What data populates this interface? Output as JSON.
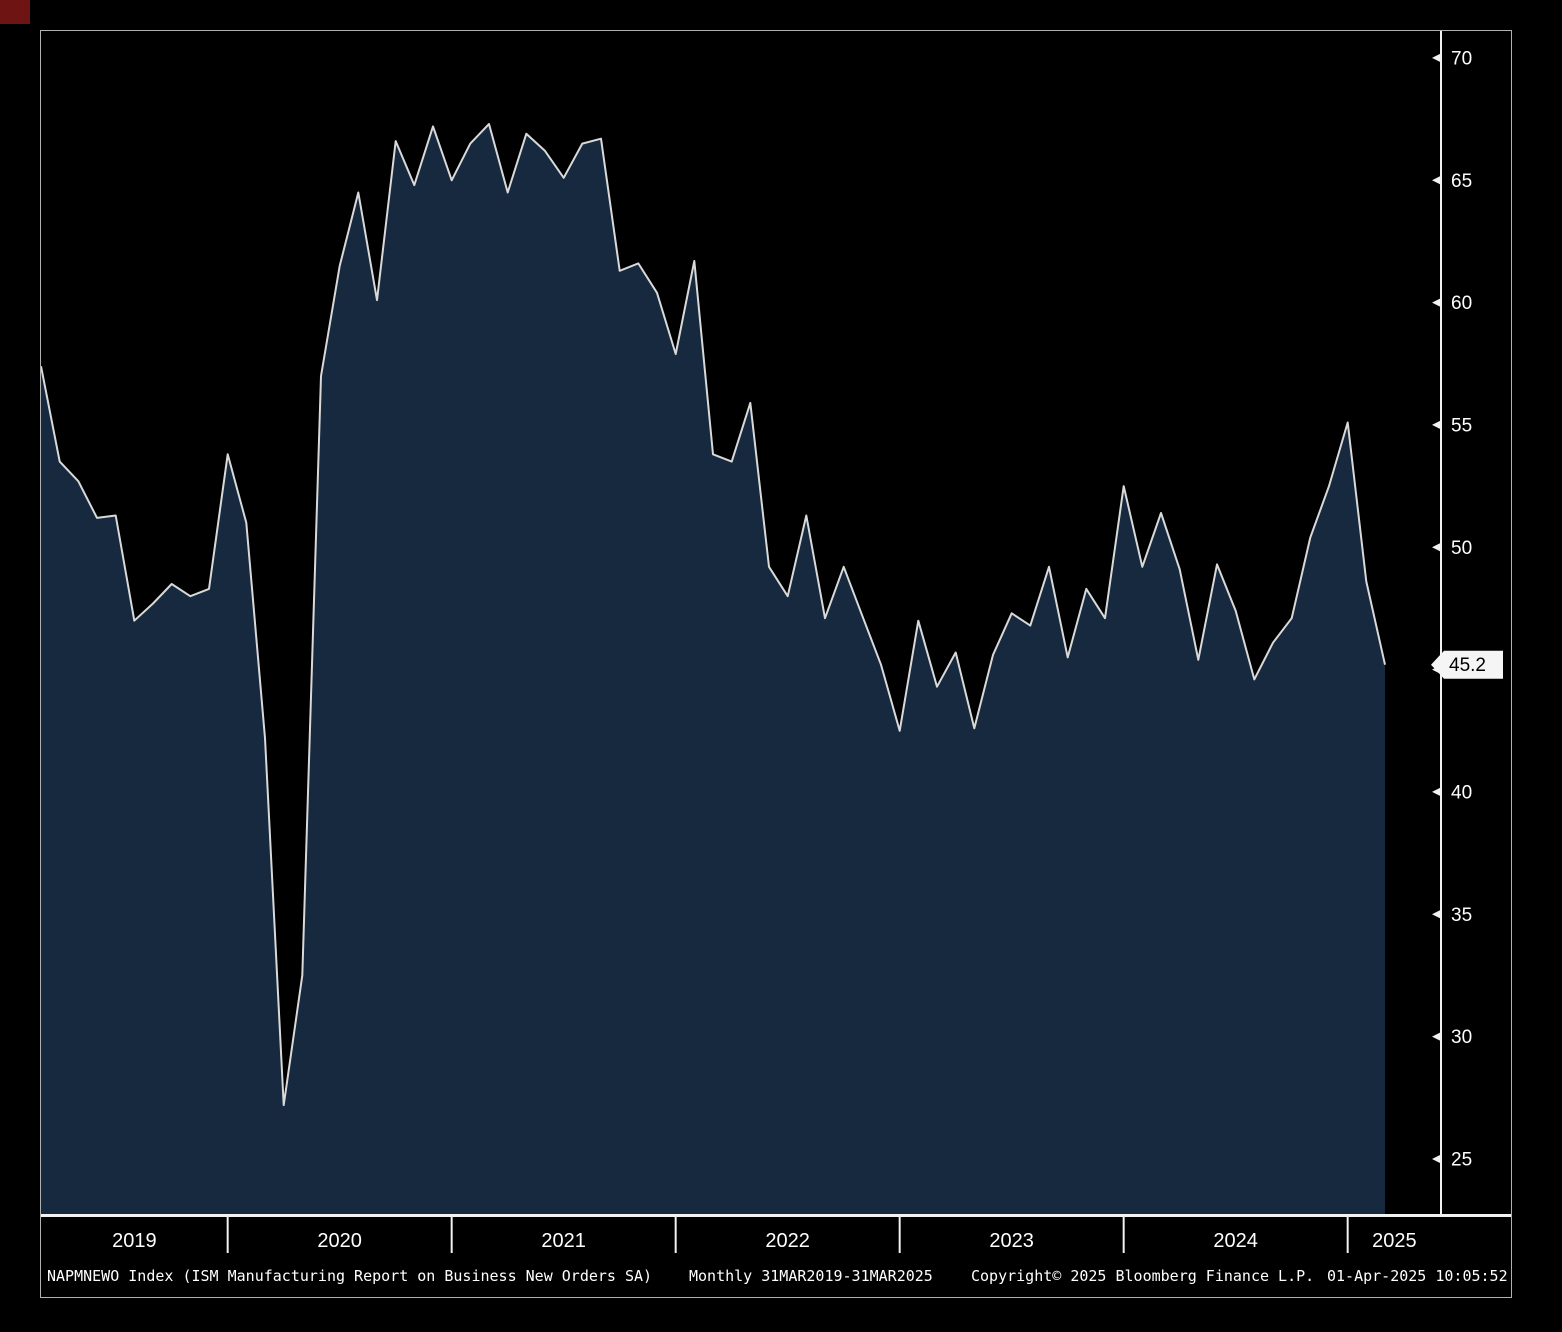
{
  "footer": {
    "ticker_line": "NAPMNEWO Index (ISM Manufacturing Report on Business New Orders SA)",
    "frequency_range": "Monthly 31MAR2019-31MAR2025",
    "copyright": "Copyright© 2025 Bloomberg Finance L.P.",
    "timestamp": "01-Apr-2025 10:05:52"
  },
  "chart_data": {
    "type": "area",
    "title": "",
    "xlabel": "",
    "ylabel": "",
    "series_name": "NAPMNEWO Index (ISM Manufacturing Report on Business New Orders SA)",
    "frequency": "Monthly",
    "date_range": "31MAR2019-31MAR2025",
    "grid": false,
    "legend": false,
    "value_axis_side": "right",
    "value_axis_range": [
      22.75,
      71.1
    ],
    "y_ticks": [
      25,
      30,
      35,
      40,
      45,
      50,
      55,
      60,
      65,
      70
    ],
    "year_labels": [
      "2019",
      "2020",
      "2021",
      "2022",
      "2023",
      "2024",
      "2025"
    ],
    "x_axis_total_months": 75,
    "last_value": 45.2,
    "last_value_label": "45.2",
    "months": [
      "2019-03",
      "2019-04",
      "2019-05",
      "2019-06",
      "2019-07",
      "2019-08",
      "2019-09",
      "2019-10",
      "2019-11",
      "2019-12",
      "2020-01",
      "2020-02",
      "2020-03",
      "2020-04",
      "2020-05",
      "2020-06",
      "2020-07",
      "2020-08",
      "2020-09",
      "2020-10",
      "2020-11",
      "2020-12",
      "2021-01",
      "2021-02",
      "2021-03",
      "2021-04",
      "2021-05",
      "2021-06",
      "2021-07",
      "2021-08",
      "2021-09",
      "2021-10",
      "2021-11",
      "2021-12",
      "2022-01",
      "2022-02",
      "2022-03",
      "2022-04",
      "2022-05",
      "2022-06",
      "2022-07",
      "2022-08",
      "2022-09",
      "2022-10",
      "2022-11",
      "2022-12",
      "2023-01",
      "2023-02",
      "2023-03",
      "2023-04",
      "2023-05",
      "2023-06",
      "2023-07",
      "2023-08",
      "2023-09",
      "2023-10",
      "2023-11",
      "2023-12",
      "2024-01",
      "2024-02",
      "2024-03",
      "2024-04",
      "2024-05",
      "2024-06",
      "2024-07",
      "2024-08",
      "2024-09",
      "2024-10",
      "2024-11",
      "2024-12",
      "2025-01",
      "2025-02",
      "2025-03"
    ],
    "values": [
      57.4,
      53.5,
      52.7,
      51.2,
      51.3,
      47.0,
      47.7,
      48.5,
      48.0,
      48.3,
      53.8,
      51.0,
      42.2,
      27.2,
      32.5,
      57.0,
      61.5,
      64.5,
      60.1,
      66.6,
      64.8,
      67.2,
      65.0,
      66.5,
      67.3,
      64.5,
      66.9,
      66.2,
      65.1,
      66.5,
      66.7,
      61.3,
      61.6,
      60.4,
      57.9,
      61.7,
      53.8,
      53.5,
      55.9,
      49.2,
      48.0,
      51.3,
      47.1,
      49.2,
      47.2,
      45.2,
      42.5,
      47.0,
      44.3,
      45.7,
      42.6,
      45.6,
      47.3,
      46.8,
      49.2,
      45.5,
      48.3,
      47.1,
      52.5,
      49.2,
      51.4,
      49.1,
      45.4,
      49.3,
      47.4,
      44.6,
      46.1,
      47.1,
      50.4,
      52.5,
      55.1,
      48.6,
      45.2
    ],
    "colors": {
      "background": "#000000",
      "area_fill": "#16293f",
      "line": "#d9d9d9",
      "axis": "#f2f2f2",
      "tick_label": "#ffffff",
      "last_value_bg": "#f5f5f5",
      "last_value_text": "#000000",
      "frame_border": "#b0b0b0",
      "corner_marker": "#6e1413"
    }
  }
}
